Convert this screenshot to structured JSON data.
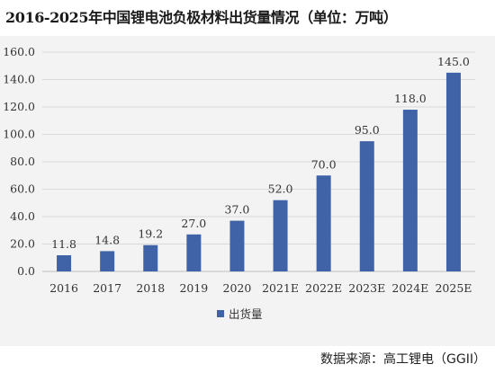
{
  "title": "2016-2025年中国锂电池负极材料出货量情况（单位：万吨）",
  "source": "数据来源：高工锂电（GGII）",
  "colors": {
    "bar": "#3f63a6",
    "grid": "#d9d9d9",
    "background": "#f3f3f3"
  },
  "chart_data": {
    "type": "bar",
    "title": "2016-2025年中国锂电池负极材料出货量情况（单位：万吨）",
    "categories": [
      "2016",
      "2017",
      "2018",
      "2019",
      "2020",
      "2021E",
      "2022E",
      "2023E",
      "2024E",
      "2025E"
    ],
    "series": [
      {
        "name": "出货量",
        "values": [
          11.8,
          14.8,
          19.2,
          27.0,
          37.0,
          52.0,
          70.0,
          95.0,
          118.0,
          145.0
        ]
      }
    ],
    "data_labels": [
      "11.8",
      "14.8",
      "19.2",
      "27.0",
      "37.0",
      "52.0",
      "70.0",
      "95.0",
      "118.0",
      "145.0"
    ],
    "yticks": [
      "0.0",
      "20.0",
      "40.0",
      "60.0",
      "80.0",
      "100.0",
      "120.0",
      "140.0",
      "160.0"
    ],
    "ylim": [
      0,
      160
    ],
    "grid": true,
    "legend_position": "bottom-left",
    "xlabel": "",
    "ylabel": ""
  }
}
